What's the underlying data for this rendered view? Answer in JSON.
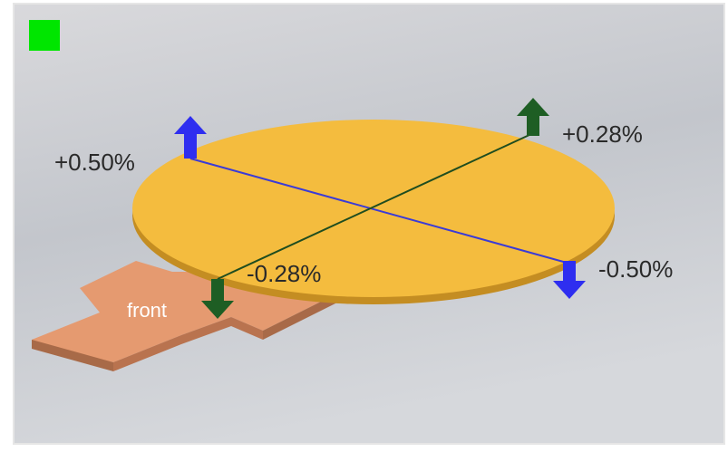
{
  "tilt_axes": [
    {
      "positive": "+0.50%",
      "negative": "-0.50%"
    },
    {
      "positive": "+0.28%",
      "negative": "-0.28%"
    }
  ],
  "base_label": "front"
}
